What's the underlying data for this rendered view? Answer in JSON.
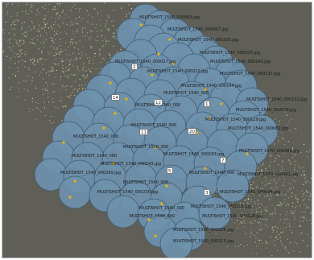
{
  "cameras": [
    {
      "name": "MULTISHOT_1540_000069.jpg"
    },
    {
      "name": "MULTISHOT_1540_000067.jpg"
    },
    {
      "name": "MULTISHOT_1540_000205.jpg"
    },
    {
      "name": "MULTISHOT_1540_000203.jpg"
    },
    {
      "name": "MULTISHOT_1540_000140.jpg"
    },
    {
      "name": "MULTISHOT_1540_000137.jpg"
    },
    {
      "name": "MULTISHOT_1540_000132.jpg"
    },
    {
      "name": "MULTISHOT_1540_000078.jpg"
    },
    {
      "name": "MULTISHOT_1540_000129.jpg"
    },
    {
      "name": "MULTISHOT_1540_000082.jpg"
    },
    {
      "name": "MULTISHOT_1540_000086.jpg"
    },
    {
      "name": "MULTISHOT_1540_000091.jpg"
    },
    {
      "name": "MULTISHOT_1540_000094.jpg"
    },
    {
      "name": "MULTISHOT_1540_000112.jpg"
    },
    {
      "name": "MULTISHOT_1540_000098.jpg"
    },
    {
      "name": "MULTISHOT_1540_000108.jpg"
    },
    {
      "name": "MULTISHOT_1540_000105.jpg"
    },
    {
      "name": "MULTISHOT_1540_000299.jpg"
    },
    {
      "name": "MULTISHOT_1540_000236.jpg"
    },
    {
      "name": "MULTISHOT_1540_000183.jpg"
    },
    {
      "name": "MULTISHOT_1540_000243.jpg"
    },
    {
      "name": "MULTISHOT_1540_000212.jpg"
    },
    {
      "name": "MULTISHOT_1540_000027.jpg"
    },
    {
      "name": "MULTISHOT_1540_000144.jpg"
    },
    {
      "name": "MULTISHOT_1540_000"
    },
    {
      "name": "MULTISHOT_1540_000"
    },
    {
      "name": "MULTISHOT_1540_000"
    },
    {
      "name": "MULTISHOT_1540_000"
    },
    {
      "name": "MULTISHOT_1540_000"
    },
    {
      "name": "MULTISHOT_1540_000"
    },
    {
      "name": "MULTISHOT_1540_000"
    },
    {
      "name": "MULTISHOT_1540_000"
    },
    {
      "name": "MULTISHOT_1540_000"
    },
    {
      "name": "MULTISHOT_1540_000"
    }
  ],
  "markers": [
    {
      "label": "14"
    },
    {
      "label": "11"
    },
    {
      "label": "12"
    },
    {
      "label": "20"
    },
    {
      "label": "7"
    },
    {
      "label": "5"
    },
    {
      "label": "3"
    },
    {
      "label": "2"
    },
    {
      "label": "1"
    }
  ],
  "colors": {
    "camera_fill": "#6f91ad",
    "camera_stroke": "#3e5a72",
    "point_cloud": "#e9e7c6",
    "camera_center": "#f0b400",
    "background": "#5f5f57"
  }
}
